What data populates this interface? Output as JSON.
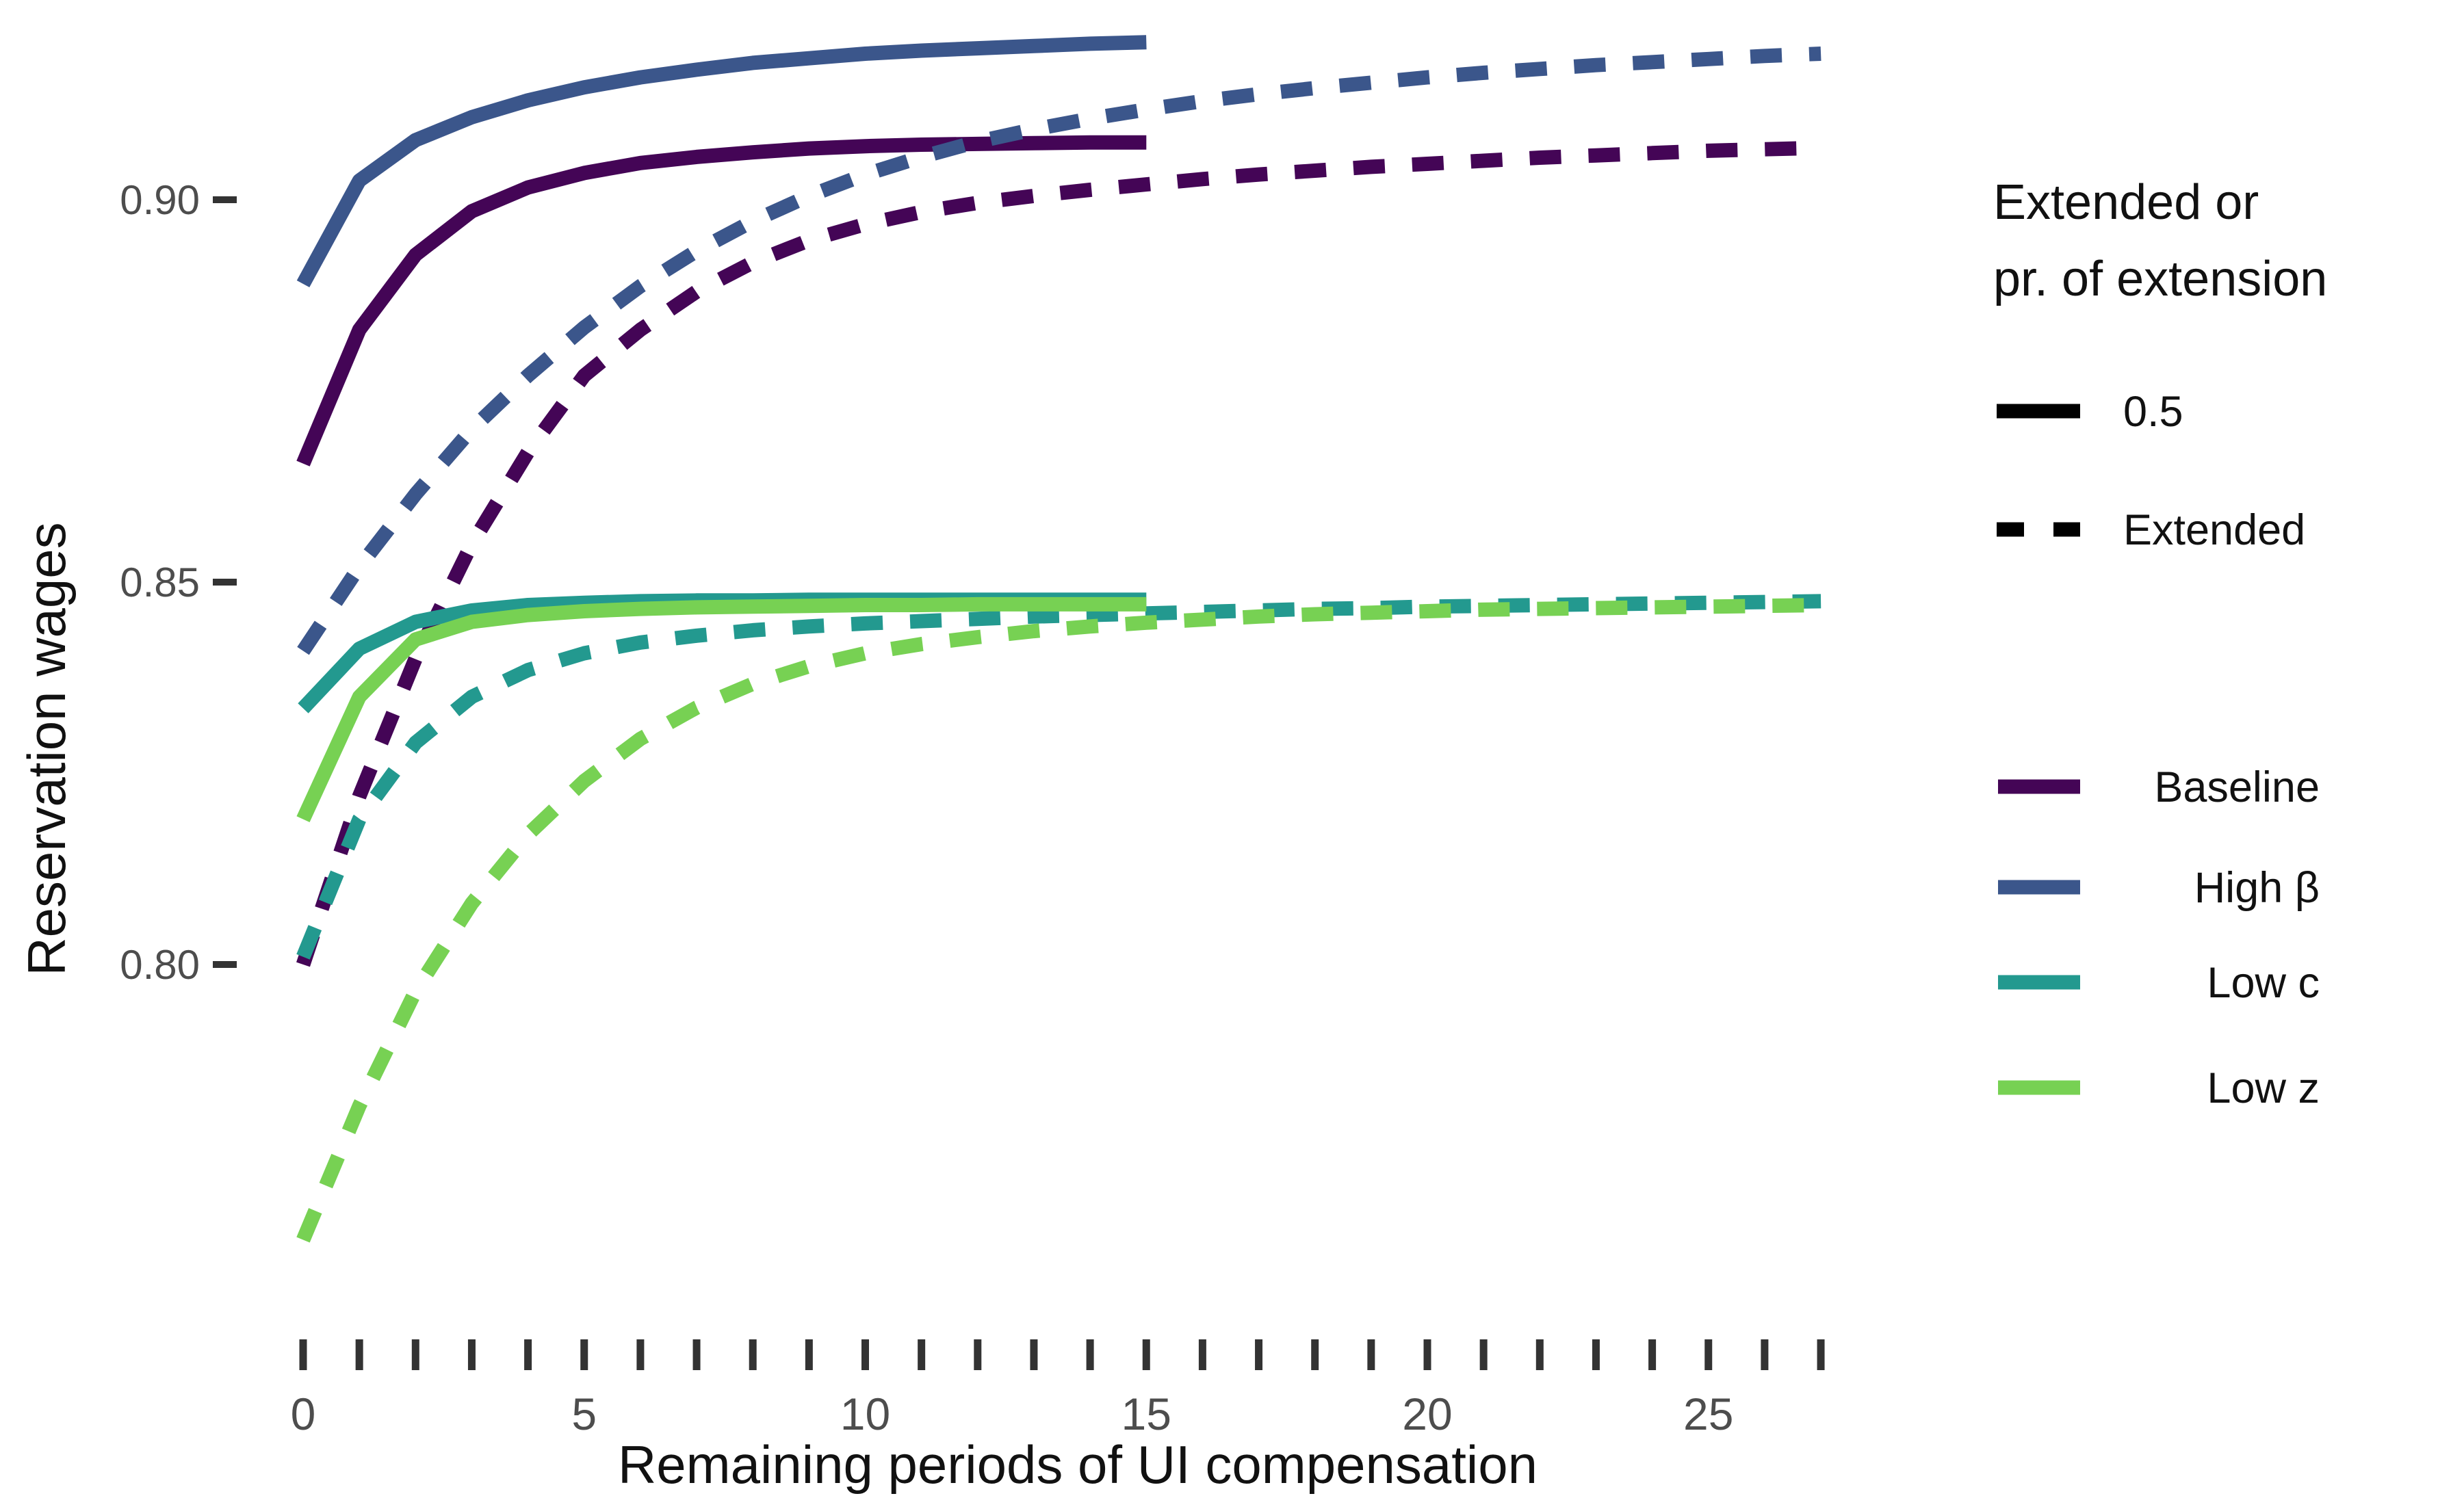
{
  "chart_data": {
    "type": "line",
    "title": "",
    "xlabel": "Remaining periods of UI compensation",
    "ylabel": "Reservation wages",
    "xlim": [
      0,
      27
    ],
    "ylim": [
      0.755,
      0.925
    ],
    "grid": "off",
    "xticks_labeled": [
      0,
      5,
      10,
      15,
      20,
      25
    ],
    "xticks_minor_every": 1,
    "yticks": [
      {
        "value": 0.8,
        "label": "0.80"
      },
      {
        "value": 0.85,
        "label": "0.85"
      },
      {
        "value": 0.9,
        "label": "0.90"
      }
    ],
    "legend_linetype": {
      "title_line1": "Extended or",
      "title_line2": "pr. of extension",
      "items": [
        {
          "label": "0.5",
          "linetype": "solid"
        },
        {
          "label": "Extended",
          "linetype": "dashed"
        }
      ]
    },
    "legend_color": {
      "items": [
        {
          "label": "Baseline",
          "color": "#440556"
        },
        {
          "label": "High β",
          "color": "#3b568b"
        },
        {
          "label": "Low c",
          "color": "#23998f"
        },
        {
          "label": "Low z",
          "color": "#77d153"
        }
      ]
    },
    "series": [
      {
        "name": "baseline-solid",
        "scenario": "Baseline",
        "linetype": "solid",
        "color": "#440556",
        "values": [
          0.8655,
          0.883,
          0.8928,
          0.8985,
          0.9016,
          0.9035,
          0.9048,
          0.9056,
          0.9062,
          0.9067,
          0.907,
          0.9072,
          0.9073,
          0.9074,
          0.9075,
          0.9075
        ]
      },
      {
        "name": "baseline-dashed",
        "scenario": "Baseline",
        "linetype": "dashed",
        "color": "#440556",
        "values": [
          0.8,
          0.822,
          0.84,
          0.855,
          0.867,
          0.877,
          0.883,
          0.888,
          0.8918,
          0.8947,
          0.8968,
          0.8984,
          0.8996,
          0.9005,
          0.9013,
          0.902,
          0.9027,
          0.9033,
          0.9038,
          0.9043,
          0.9047,
          0.9051,
          0.9055,
          0.9058,
          0.9061,
          0.9064,
          0.9066,
          0.9068
        ]
      },
      {
        "name": "highbeta-solid",
        "scenario": "High β",
        "linetype": "solid",
        "color": "#3b568b",
        "values": [
          0.889,
          0.9025,
          0.9078,
          0.9108,
          0.913,
          0.9147,
          0.916,
          0.917,
          0.9179,
          0.9185,
          0.9191,
          0.9195,
          0.9198,
          0.9201,
          0.9204,
          0.9206
        ]
      },
      {
        "name": "highbeta-dashed",
        "scenario": "High β",
        "linetype": "dashed",
        "color": "#3b568b",
        "values": [
          0.841,
          0.852,
          0.8615,
          0.87,
          0.877,
          0.8833,
          0.8887,
          0.8933,
          0.8972,
          0.9005,
          0.9033,
          0.9056,
          0.9076,
          0.9092,
          0.9106,
          0.9118,
          0.9129,
          0.9138,
          0.9146,
          0.9153,
          0.916,
          0.9166,
          0.9171,
          0.9176,
          0.918,
          0.9184,
          0.9188,
          0.9191
        ]
      },
      {
        "name": "lowc-solid",
        "scenario": "Low c",
        "linetype": "solid",
        "color": "#23998f",
        "values": [
          0.8335,
          0.8413,
          0.8448,
          0.8463,
          0.847,
          0.8473,
          0.8475,
          0.8476,
          0.8476,
          0.8477,
          0.8477,
          0.8477,
          0.8477,
          0.8477,
          0.8477,
          0.8477
        ]
      },
      {
        "name": "lowc-dashed",
        "scenario": "Low c",
        "linetype": "dashed",
        "color": "#23998f",
        "values": [
          0.801,
          0.819,
          0.829,
          0.835,
          0.8385,
          0.8407,
          0.8421,
          0.843,
          0.8437,
          0.8442,
          0.8446,
          0.8449,
          0.8452,
          0.8455,
          0.8457,
          0.8459,
          0.8461,
          0.8463,
          0.8465,
          0.8466,
          0.8468,
          0.8469,
          0.847,
          0.8471,
          0.8472,
          0.8473,
          0.8474,
          0.8475
        ]
      },
      {
        "name": "lowz-solid",
        "scenario": "Low z",
        "linetype": "solid",
        "color": "#77d153",
        "values": [
          0.819,
          0.835,
          0.8425,
          0.8448,
          0.8457,
          0.8462,
          0.8465,
          0.8467,
          0.8468,
          0.8469,
          0.847,
          0.847,
          0.8471,
          0.8471,
          0.8471,
          0.8471
        ]
      },
      {
        "name": "lowz-dashed",
        "scenario": "Low z",
        "linetype": "dashed",
        "color": "#77d153",
        "values": [
          0.764,
          0.7815,
          0.7965,
          0.808,
          0.817,
          0.824,
          0.8295,
          0.8336,
          0.8367,
          0.839,
          0.8407,
          0.8419,
          0.8428,
          0.8436,
          0.8442,
          0.8447,
          0.8451,
          0.8455,
          0.8458,
          0.846,
          0.8462,
          0.8464,
          0.8465,
          0.8466,
          0.8467,
          0.8468,
          0.8469,
          0.847
        ]
      }
    ]
  }
}
